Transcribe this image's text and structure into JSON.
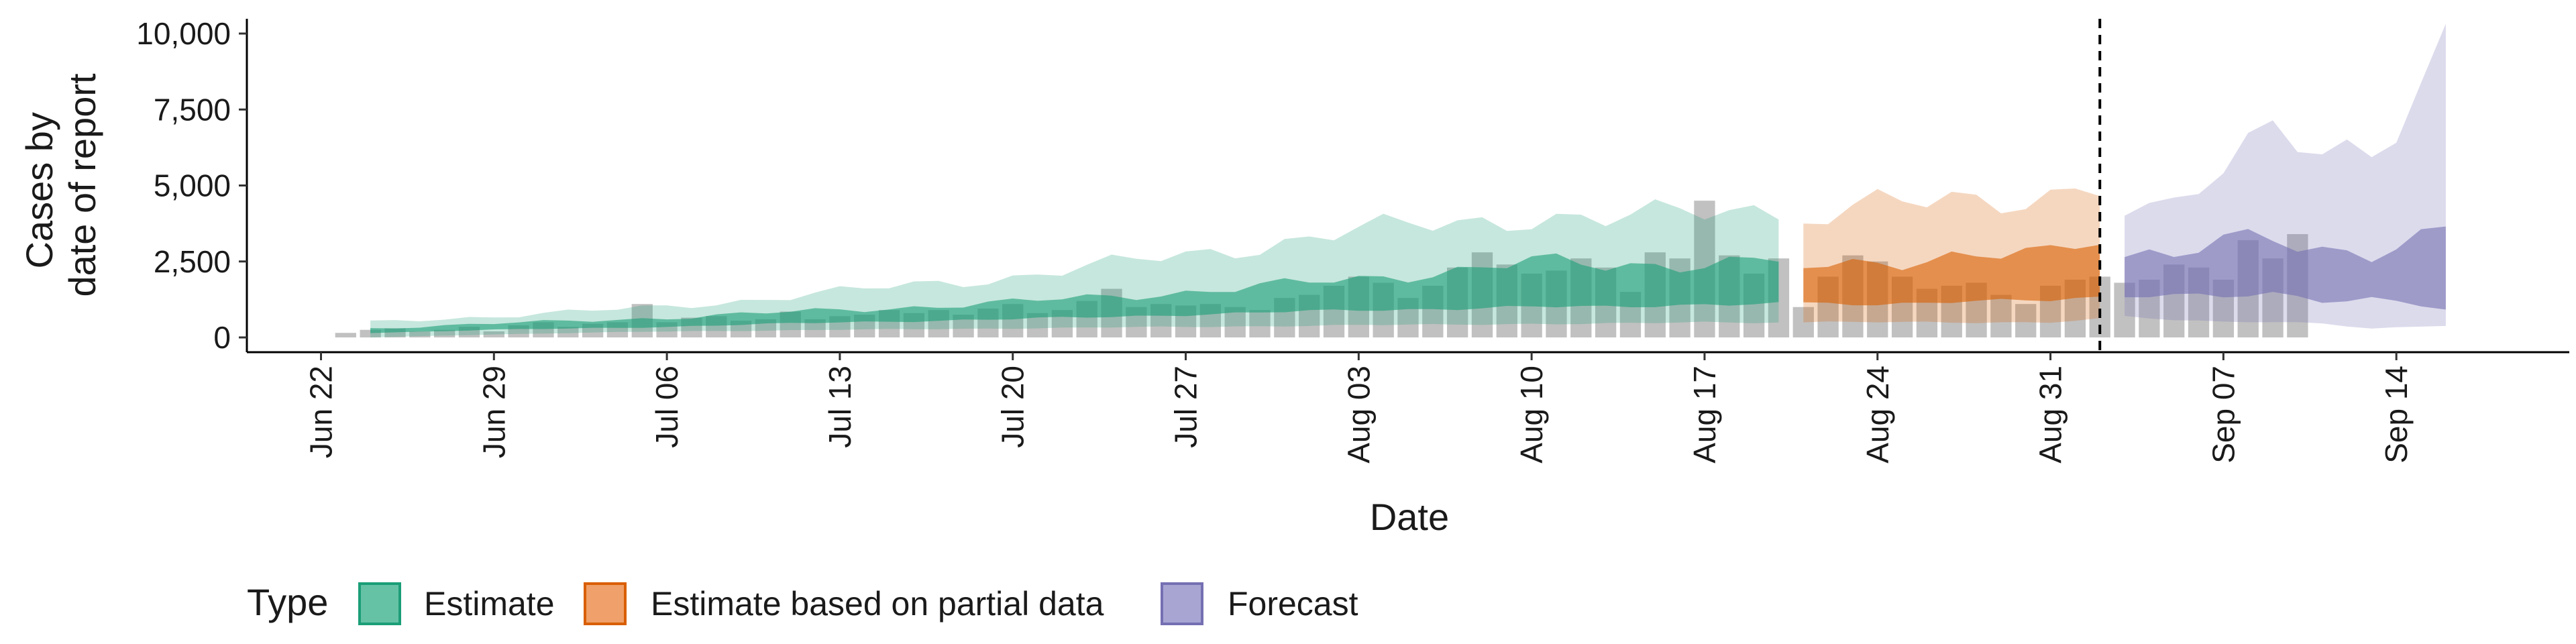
{
  "chart_data": {
    "type": "area",
    "xlabel": "Date",
    "ylabel_lines": [
      "Cases by",
      "date of report"
    ],
    "ylim": [
      0,
      10000
    ],
    "xlim": [
      "2020-06-19",
      "2020-09-21"
    ],
    "y_ticks": [
      0,
      2500,
      5000,
      7500,
      10000
    ],
    "y_tick_labels": [
      "0",
      "2,500",
      "5,000",
      "7,500",
      "10,000"
    ],
    "x_ticks": [
      "2020-06-22",
      "2020-06-29",
      "2020-07-06",
      "2020-07-13",
      "2020-07-20",
      "2020-07-27",
      "2020-08-03",
      "2020-08-10",
      "2020-08-17",
      "2020-08-24",
      "2020-08-31",
      "2020-09-07",
      "2020-09-14"
    ],
    "x_tick_labels": [
      "Jun 22",
      "Jun 29",
      "Jul 06",
      "Jul 13",
      "Jul 20",
      "Jul 27",
      "Aug 03",
      "Aug 10",
      "Aug 17",
      "Aug 24",
      "Aug 31",
      "Sep 07",
      "Sep 14"
    ],
    "forecast_date": "2020-09-02",
    "grid": false,
    "legend": {
      "title": "Type",
      "position": "bottom-left",
      "items": [
        {
          "label": "Estimate",
          "fill": "#66c2a5",
          "stroke": "#1b9e77"
        },
        {
          "label": "Estimate based on partial data",
          "fill": "#f0a06a",
          "stroke": "#d95f02"
        },
        {
          "label": "Forecast",
          "fill": "#a8a5d3",
          "stroke": "#7570b3"
        }
      ]
    },
    "colors": {
      "bars": "#a6a6a6",
      "estimate": "#1b9e77",
      "partial": "#d95f02",
      "forecast": "#7570b3"
    },
    "reported_cases": {
      "start_date": "2020-06-23",
      "values": [
        150,
        250,
        300,
        200,
        250,
        350,
        200,
        400,
        500,
        350,
        450,
        500,
        1100,
        500,
        650,
        700,
        550,
        600,
        850,
        600,
        700,
        750,
        900,
        800,
        900,
        750,
        950,
        1100,
        800,
        900,
        1200,
        1600,
        1000,
        1100,
        1050,
        1100,
        1000,
        900,
        1300,
        1400,
        1700,
        2000,
        1800,
        1300,
        1700,
        2300,
        2800,
        2400,
        2100,
        2200,
        2600,
        2300,
        1500,
        2800,
        2600,
        4500,
        2700,
        2100,
        2600,
        1000,
        2000,
        2700,
        2500,
        2000,
        1600,
        1700,
        1800,
        1400,
        1100,
        1700,
        1900,
        2000,
        1800,
        1900,
        2400,
        2300,
        1900,
        3200,
        2600,
        3400
      ]
    },
    "estimate": {
      "start_date": "2020-06-24",
      "end_date": "2020-08-20",
      "x": [
        "2020-06-24",
        "2020-06-29",
        "2020-07-06",
        "2020-07-13",
        "2020-07-20",
        "2020-07-27",
        "2020-08-03",
        "2020-08-10",
        "2020-08-13",
        "2020-08-17",
        "2020-08-20"
      ],
      "outer_lower": [
        0,
        100,
        200,
        250,
        300,
        350,
        400,
        450,
        450,
        500,
        500
      ],
      "outer_upper": [
        500,
        700,
        1000,
        1500,
        2000,
        2700,
        3500,
        4000,
        3800,
        4200,
        4300
      ],
      "inner_lower": [
        150,
        250,
        350,
        500,
        600,
        750,
        900,
        1000,
        1000,
        1100,
        1100
      ],
      "inner_upper": [
        300,
        450,
        650,
        900,
        1150,
        1500,
        1900,
        2500,
        2300,
        2500,
        2600
      ]
    },
    "partial": {
      "start_date": "2020-08-21",
      "end_date": "2020-09-02",
      "x": [
        "2020-08-21",
        "2020-08-24",
        "2020-08-27",
        "2020-08-31",
        "2020-09-02"
      ],
      "outer_lower": [
        500,
        500,
        500,
        500,
        600
      ],
      "outer_upper": [
        3700,
        4300,
        4700,
        4600,
        4800
      ],
      "inner_lower": [
        1100,
        1100,
        1200,
        1200,
        1300
      ],
      "inner_upper": [
        2300,
        2500,
        2700,
        2700,
        3200
      ]
    },
    "forecast": {
      "start_date": "2020-09-03",
      "end_date": "2020-09-16",
      "x": [
        "2020-09-03",
        "2020-09-05",
        "2020-09-07",
        "2020-09-09",
        "2020-09-11",
        "2020-09-13",
        "2020-09-16"
      ],
      "outer_lower": [
        700,
        600,
        500,
        500,
        450,
        300,
        400
      ],
      "outer_upper": [
        4600,
        4500,
        5600,
        6500,
        6000,
        6200,
        9900
      ],
      "inner_lower": [
        1300,
        1400,
        1300,
        1500,
        1200,
        1300,
        900
      ],
      "inner_upper": [
        2700,
        2500,
        3200,
        3400,
        3000,
        2700,
        3400
      ]
    }
  }
}
